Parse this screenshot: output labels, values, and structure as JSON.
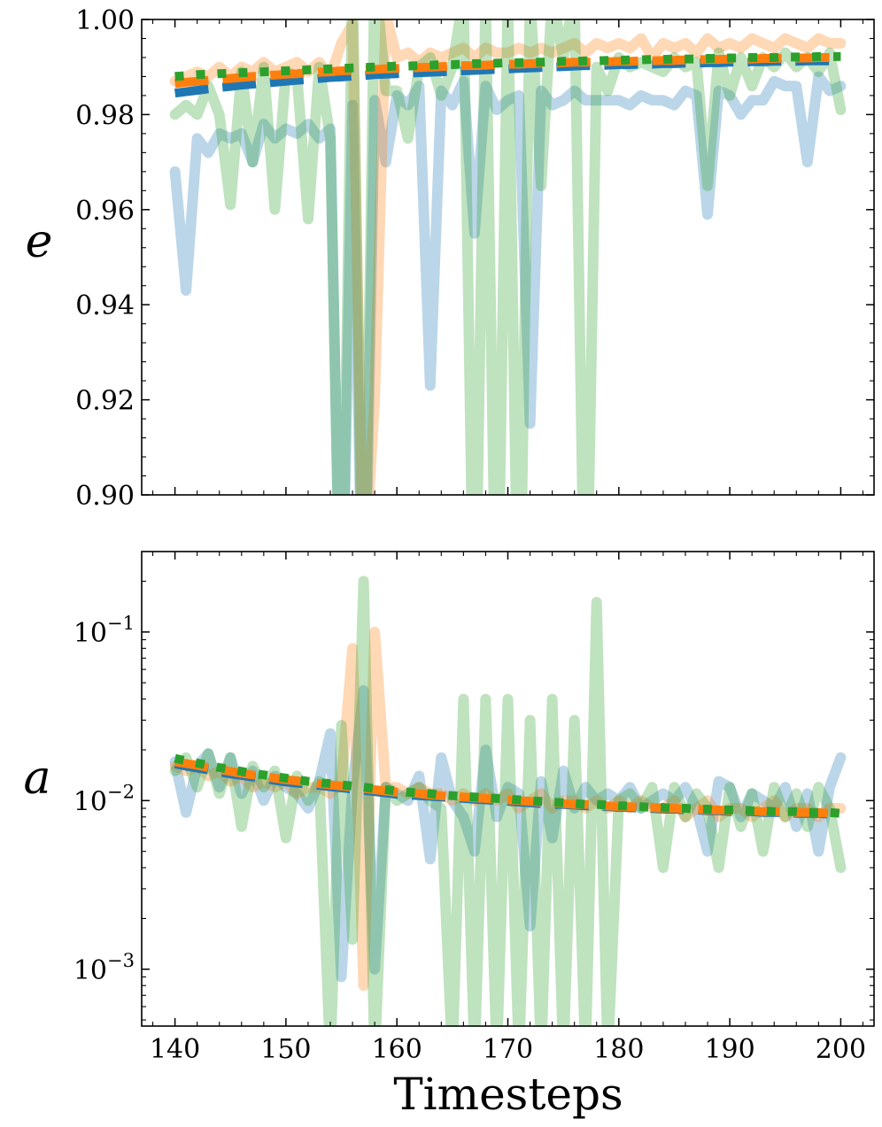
{
  "chart_data": [
    {
      "type": "line",
      "panel": "top",
      "ylabel": "e",
      "xlabel": "",
      "xlim": [
        137,
        203
      ],
      "ylim": [
        0.9,
        1.0
      ],
      "yscale": "linear",
      "grid": false,
      "xticks": [
        140,
        150,
        160,
        170,
        180,
        190,
        200
      ],
      "yticks": [
        0.9,
        0.92,
        0.94,
        0.96,
        0.98,
        1.0
      ],
      "ytick_labels": [
        "0.90",
        "0.92",
        "0.94",
        "0.96",
        "0.98",
        "1.00"
      ],
      "x": [
        140,
        141,
        142,
        143,
        144,
        145,
        146,
        147,
        148,
        149,
        150,
        151,
        152,
        153,
        154,
        155,
        156,
        157,
        158,
        159,
        160,
        161,
        162,
        163,
        164,
        165,
        166,
        167,
        168,
        169,
        170,
        171,
        172,
        173,
        174,
        175,
        176,
        177,
        178,
        179,
        180,
        181,
        182,
        183,
        184,
        185,
        186,
        187,
        188,
        189,
        190,
        191,
        192,
        193,
        194,
        195,
        196,
        197,
        198,
        199,
        200
      ],
      "series": [
        {
          "color": "#1f77b4",
          "alpha": 0.3,
          "style": "solid",
          "values": [
            0.968,
            0.943,
            0.975,
            0.972,
            0.976,
            0.975,
            0.976,
            0.97,
            0.978,
            0.975,
            0.977,
            0.976,
            0.978,
            0.975,
            0.977,
            0.86,
            0.982,
            0.86,
            0.983,
            0.97,
            0.984,
            0.982,
            0.986,
            0.923,
            0.985,
            0.982,
            0.987,
            0.955,
            0.986,
            0.981,
            0.983,
            0.984,
            0.915,
            0.985,
            0.982,
            0.983,
            0.985,
            0.983,
            0.983,
            0.983,
            0.983,
            0.982,
            0.984,
            0.983,
            0.983,
            0.982,
            0.985,
            0.984,
            0.959,
            0.985,
            0.984,
            0.98,
            0.983,
            0.983,
            0.987,
            0.986,
            0.986,
            0.97,
            0.988,
            0.985,
            0.986
          ]
        },
        {
          "color": "#ff7f0e",
          "alpha": 0.3,
          "style": "solid",
          "values": [
            0.987,
            0.988,
            0.989,
            0.988,
            0.99,
            0.988,
            0.99,
            0.989,
            0.991,
            0.989,
            0.99,
            0.991,
            0.989,
            0.991,
            0.988,
            0.995,
            0.999,
            0.88,
            0.92,
            1.001,
            0.992,
            0.993,
            0.991,
            0.993,
            0.992,
            0.993,
            0.994,
            0.992,
            0.994,
            0.993,
            0.993,
            0.994,
            0.993,
            0.994,
            0.993,
            0.994,
            0.995,
            0.993,
            0.995,
            0.994,
            0.995,
            0.994,
            0.996,
            0.992,
            0.995,
            0.994,
            0.995,
            0.993,
            0.996,
            0.994,
            0.995,
            0.994,
            0.996,
            0.995,
            0.994,
            0.996,
            0.995,
            0.994,
            0.996,
            0.995,
            0.995
          ]
        },
        {
          "color": "#2ca02c",
          "alpha": 0.3,
          "style": "solid",
          "values": [
            0.98,
            0.982,
            0.98,
            0.986,
            0.98,
            0.961,
            0.989,
            0.97,
            0.99,
            0.96,
            0.989,
            0.988,
            0.958,
            0.99,
            0.975,
            0.86,
            1.01,
            0.86,
            1.01,
            0.985,
            0.985,
            0.975,
            0.99,
            0.992,
            0.984,
            0.99,
            1.005,
            0.86,
            1.005,
            0.86,
            1.005,
            0.86,
            1.005,
            0.965,
            1.005,
            0.992,
            1.005,
            0.86,
            0.99,
            0.985,
            0.992,
            0.99,
            0.991,
            0.99,
            0.989,
            0.992,
            0.99,
            0.991,
            0.965,
            0.993,
            0.984,
            0.992,
            0.986,
            0.992,
            0.99,
            0.993,
            0.99,
            0.992,
            0.989,
            0.993,
            0.981
          ]
        },
        {
          "color": "#1f77b4",
          "alpha": 1.0,
          "style": "dashed",
          "values": [
            0.9845,
            0.9848,
            0.9851,
            0.9854,
            0.9857,
            0.9859,
            0.9862,
            0.9864,
            0.9866,
            0.9868,
            0.987,
            0.9872,
            0.9874,
            0.9876,
            0.9878,
            0.9879,
            0.9881,
            0.9882,
            0.9884,
            0.9885,
            0.9886,
            0.9887,
            0.9888,
            0.9889,
            0.989,
            0.9891,
            0.9892,
            0.9893,
            0.9894,
            0.9895,
            0.9896,
            0.9897,
            0.9898,
            0.9899,
            0.99,
            0.9901,
            0.9902,
            0.9903,
            0.9903,
            0.9904,
            0.9905,
            0.9905,
            0.9906,
            0.9906,
            0.9907,
            0.9907,
            0.9908,
            0.9908,
            0.9909,
            0.9909,
            0.991,
            0.991,
            0.9911,
            0.9911,
            0.9912,
            0.9912,
            0.9912,
            0.9913,
            0.9913,
            0.9913,
            0.9914
          ]
        },
        {
          "color": "#ff7f0e",
          "alpha": 1.0,
          "style": "dashed",
          "values": [
            0.9865,
            0.9868,
            0.987,
            0.9872,
            0.9874,
            0.9876,
            0.9878,
            0.988,
            0.9882,
            0.9883,
            0.9885,
            0.9886,
            0.9888,
            0.9889,
            0.989,
            0.9892,
            0.9893,
            0.9894,
            0.9895,
            0.9896,
            0.9897,
            0.9898,
            0.9899,
            0.99,
            0.9901,
            0.9902,
            0.9903,
            0.9903,
            0.9904,
            0.9905,
            0.9906,
            0.9906,
            0.9907,
            0.9908,
            0.9908,
            0.9909,
            0.991,
            0.991,
            0.9911,
            0.9911,
            0.9912,
            0.9912,
            0.9913,
            0.9913,
            0.9914,
            0.9914,
            0.9915,
            0.9915,
            0.9916,
            0.9916,
            0.9917,
            0.9917,
            0.9917,
            0.9918,
            0.9918,
            0.9919,
            0.9919,
            0.9919,
            0.992,
            0.992,
            0.992
          ]
        },
        {
          "color": "#2ca02c",
          "alpha": 1.0,
          "style": "dotted",
          "values": [
            0.988,
            0.9882,
            0.9884,
            0.9885,
            0.9886,
            0.9887,
            0.9888,
            0.9889,
            0.989,
            0.9891,
            0.9892,
            0.9893,
            0.9894,
            0.9895,
            0.9896,
            0.9897,
            0.9898,
            0.9899,
            0.99,
            0.9901,
            0.9902,
            0.9902,
            0.9903,
            0.9904,
            0.9905,
            0.9905,
            0.9906,
            0.9907,
            0.9907,
            0.9908,
            0.9909,
            0.9909,
            0.991,
            0.991,
            0.9911,
            0.9912,
            0.9912,
            0.9913,
            0.9913,
            0.9914,
            0.9914,
            0.9915,
            0.9915,
            0.9916,
            0.9916,
            0.9917,
            0.9917,
            0.9917,
            0.9918,
            0.9918,
            0.9919,
            0.9919,
            0.992,
            0.992,
            0.992,
            0.9921,
            0.9921,
            0.9921,
            0.9922,
            0.9922,
            0.9922
          ]
        }
      ]
    },
    {
      "type": "line",
      "panel": "bottom",
      "ylabel": "a",
      "xlabel": "Timesteps",
      "xlim": [
        137,
        203
      ],
      "ylim": [
        0.00046,
        0.3
      ],
      "yscale": "log",
      "grid": false,
      "xticks": [
        140,
        150,
        160,
        170,
        180,
        190,
        200
      ],
      "xtick_labels": [
        "140",
        "150",
        "160",
        "170",
        "180",
        "190",
        "200"
      ],
      "yticks": [
        0.001,
        0.01,
        0.1
      ],
      "ytick_labels": [
        {
          "base": "10",
          "exp": "−3"
        },
        {
          "base": "10",
          "exp": "−2"
        },
        {
          "base": "10",
          "exp": "−1"
        }
      ],
      "x": [
        140,
        141,
        142,
        143,
        144,
        145,
        146,
        147,
        148,
        149,
        150,
        151,
        152,
        153,
        154,
        155,
        156,
        157,
        158,
        159,
        160,
        161,
        162,
        163,
        164,
        165,
        166,
        167,
        168,
        169,
        170,
        171,
        172,
        173,
        174,
        175,
        176,
        177,
        178,
        179,
        180,
        181,
        182,
        183,
        184,
        185,
        186,
        187,
        188,
        189,
        190,
        191,
        192,
        193,
        194,
        195,
        196,
        197,
        198,
        199,
        200
      ],
      "series": [
        {
          "color": "#1f77b4",
          "alpha": 0.3,
          "style": "solid",
          "values": [
            0.017,
            0.0085,
            0.016,
            0.019,
            0.012,
            0.018,
            0.011,
            0.015,
            0.01,
            0.014,
            0.012,
            0.011,
            0.009,
            0.013,
            0.025,
            0.0009,
            0.012,
            0.045,
            0.001,
            0.012,
            0.011,
            0.01,
            0.014,
            0.0045,
            0.018,
            0.01,
            0.008,
            0.005,
            0.02,
            0.008,
            0.012,
            0.011,
            0.0018,
            0.013,
            0.006,
            0.015,
            0.009,
            0.012,
            0.01,
            0.011,
            0.01,
            0.012,
            0.009,
            0.01,
            0.011,
            0.01,
            0.012,
            0.009,
            0.005,
            0.013,
            0.012,
            0.008,
            0.011,
            0.01,
            0.009,
            0.012,
            0.007,
            0.011,
            0.005,
            0.012,
            0.018
          ]
        },
        {
          "color": "#ff7f0e",
          "alpha": 0.3,
          "style": "solid",
          "values": [
            0.016,
            0.015,
            0.016,
            0.014,
            0.015,
            0.013,
            0.014,
            0.012,
            0.013,
            0.012,
            0.013,
            0.011,
            0.012,
            0.012,
            0.011,
            0.013,
            0.08,
            0.0008,
            0.1,
            0.012,
            0.012,
            0.011,
            0.012,
            0.011,
            0.011,
            0.01,
            0.011,
            0.01,
            0.011,
            0.01,
            0.011,
            0.009,
            0.01,
            0.011,
            0.009,
            0.01,
            0.01,
            0.009,
            0.01,
            0.009,
            0.01,
            0.009,
            0.01,
            0.009,
            0.009,
            0.01,
            0.008,
            0.009,
            0.01,
            0.008,
            0.009,
            0.009,
            0.008,
            0.009,
            0.01,
            0.008,
            0.009,
            0.009,
            0.008,
            0.009,
            0.009
          ]
        },
        {
          "color": "#2ca02c",
          "alpha": 0.3,
          "style": "solid",
          "values": [
            0.015,
            0.018,
            0.012,
            0.019,
            0.011,
            0.018,
            0.007,
            0.016,
            0.012,
            0.015,
            0.006,
            0.014,
            0.01,
            0.013,
            0.0003,
            0.028,
            0.0015,
            0.2,
            0.0003,
            0.012,
            0.01,
            0.011,
            0.012,
            0.01,
            0.009,
            0.0003,
            0.04,
            0.0003,
            0.04,
            0.0003,
            0.04,
            0.0003,
            0.03,
            0.0003,
            0.04,
            0.0003,
            0.03,
            0.0003,
            0.15,
            0.0003,
            0.01,
            0.011,
            0.009,
            0.012,
            0.004,
            0.012,
            0.008,
            0.011,
            0.009,
            0.004,
            0.012,
            0.007,
            0.011,
            0.005,
            0.012,
            0.008,
            0.011,
            0.007,
            0.012,
            0.009,
            0.004
          ]
        },
        {
          "color": "#1f77b4",
          "alpha": 1.0,
          "style": "dashed",
          "values": [
            0.0165,
            0.016,
            0.0156,
            0.0152,
            0.0148,
            0.0144,
            0.0141,
            0.0138,
            0.0135,
            0.0132,
            0.0129,
            0.0127,
            0.0125,
            0.0123,
            0.0121,
            0.0119,
            0.0117,
            0.0115,
            0.0113,
            0.0111,
            0.0109,
            0.0108,
            0.0107,
            0.0106,
            0.0105,
            0.0104,
            0.0103,
            0.0102,
            0.0101,
            0.01,
            0.0099,
            0.0098,
            0.0097,
            0.0096,
            0.0095,
            0.0095,
            0.0094,
            0.0093,
            0.0093,
            0.0092,
            0.0091,
            0.0091,
            0.009,
            0.009,
            0.0089,
            0.0089,
            0.0088,
            0.0088,
            0.0087,
            0.0087,
            0.0086,
            0.0086,
            0.0086,
            0.0085,
            0.0085,
            0.0085,
            0.0084,
            0.0084,
            0.0084,
            0.0083,
            0.0083
          ]
        },
        {
          "color": "#ff7f0e",
          "alpha": 1.0,
          "style": "dashed",
          "values": [
            0.017,
            0.0166,
            0.0162,
            0.0157,
            0.0153,
            0.0149,
            0.0145,
            0.0142,
            0.0139,
            0.0136,
            0.0133,
            0.0131,
            0.0128,
            0.0126,
            0.0124,
            0.0122,
            0.012,
            0.0118,
            0.0116,
            0.0114,
            0.0112,
            0.0111,
            0.011,
            0.0108,
            0.0107,
            0.0106,
            0.0105,
            0.0104,
            0.0103,
            0.0102,
            0.0101,
            0.01,
            0.0099,
            0.0098,
            0.0097,
            0.0096,
            0.0095,
            0.0095,
            0.0094,
            0.0093,
            0.0092,
            0.0092,
            0.0091,
            0.0091,
            0.009,
            0.009,
            0.0089,
            0.0089,
            0.0088,
            0.0088,
            0.0087,
            0.0087,
            0.0087,
            0.0086,
            0.0086,
            0.0086,
            0.0085,
            0.0085,
            0.0085,
            0.0084,
            0.0084
          ]
        },
        {
          "color": "#2ca02c",
          "alpha": 1.0,
          "style": "dotted",
          "values": [
            0.0178,
            0.0172,
            0.0167,
            0.0162,
            0.0157,
            0.0153,
            0.0149,
            0.0145,
            0.0142,
            0.0139,
            0.0136,
            0.0133,
            0.013,
            0.0128,
            0.0126,
            0.0124,
            0.0122,
            0.012,
            0.0118,
            0.0116,
            0.0114,
            0.0112,
            0.0111,
            0.011,
            0.0108,
            0.0107,
            0.0106,
            0.0105,
            0.0104,
            0.0103,
            0.0102,
            0.0101,
            0.01,
            0.0099,
            0.0098,
            0.0097,
            0.0096,
            0.0095,
            0.0095,
            0.0094,
            0.0093,
            0.0093,
            0.0092,
            0.0091,
            0.0091,
            0.009,
            0.009,
            0.0089,
            0.0089,
            0.0088,
            0.0088,
            0.0088,
            0.0087,
            0.0087,
            0.0086,
            0.0086,
            0.0086,
            0.0085,
            0.0085,
            0.0085,
            0.0084
          ]
        }
      ]
    }
  ]
}
